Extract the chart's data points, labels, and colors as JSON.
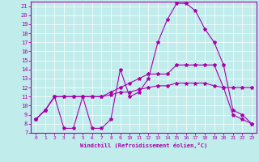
{
  "xlabel": "Windchill (Refroidissement éolien,°C)",
  "xlim": [
    -0.5,
    23.5
  ],
  "ylim": [
    7,
    21.5
  ],
  "xticks": [
    0,
    1,
    2,
    3,
    4,
    5,
    6,
    7,
    8,
    9,
    10,
    11,
    12,
    13,
    14,
    15,
    16,
    17,
    18,
    19,
    20,
    21,
    22,
    23
  ],
  "yticks": [
    7,
    8,
    9,
    10,
    11,
    12,
    13,
    14,
    15,
    16,
    17,
    18,
    19,
    20,
    21
  ],
  "background_color": "#c0ecec",
  "line_color": "#aa00aa",
  "grid_color": "#ffffff",
  "line1_x": [
    0,
    1,
    2,
    3,
    4,
    5,
    6,
    7,
    8,
    9,
    10,
    11,
    12,
    13,
    14,
    15,
    16,
    17,
    18,
    19,
    20,
    21,
    22,
    23
  ],
  "line1_y": [
    8.5,
    9.5,
    11.0,
    7.5,
    7.5,
    11.0,
    7.5,
    7.5,
    8.5,
    14.0,
    11.0,
    11.5,
    13.0,
    17.0,
    19.5,
    21.3,
    21.3,
    20.5,
    18.5,
    17.0,
    14.5,
    9.5,
    9.0,
    8.0
  ],
  "line2_x": [
    0,
    1,
    2,
    3,
    4,
    5,
    6,
    7,
    8,
    9,
    10,
    11,
    12,
    13,
    14,
    15,
    16,
    17,
    18,
    19,
    20,
    21,
    22,
    23
  ],
  "line2_y": [
    8.5,
    9.5,
    11.0,
    11.0,
    11.0,
    11.0,
    11.0,
    11.0,
    11.5,
    12.0,
    12.5,
    13.0,
    13.5,
    13.5,
    13.5,
    14.5,
    14.5,
    14.5,
    14.5,
    14.5,
    12.0,
    9.0,
    8.5,
    8.0
  ],
  "line3_x": [
    0,
    1,
    2,
    3,
    4,
    5,
    6,
    7,
    8,
    9,
    10,
    11,
    12,
    13,
    14,
    15,
    16,
    17,
    18,
    19,
    20,
    21,
    22,
    23
  ],
  "line3_y": [
    8.5,
    9.5,
    11.0,
    11.0,
    11.0,
    11.0,
    11.0,
    11.0,
    11.2,
    11.5,
    11.5,
    11.8,
    12.0,
    12.2,
    12.2,
    12.5,
    12.5,
    12.5,
    12.5,
    12.2,
    12.0,
    12.0,
    12.0,
    12.0
  ]
}
